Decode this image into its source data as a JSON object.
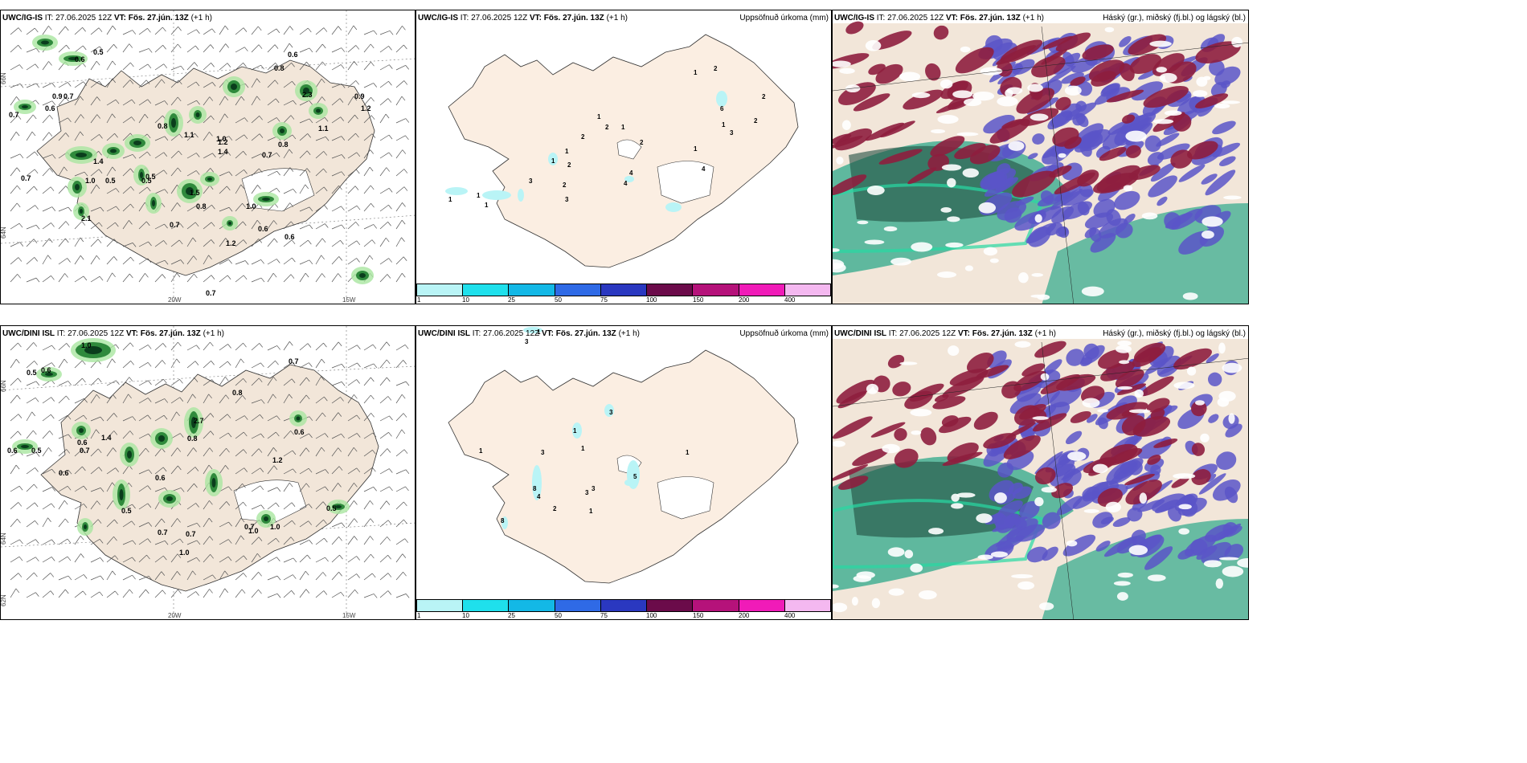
{
  "rows": [
    {
      "model": "UWC/IG-IS",
      "it_label": "IT:",
      "it_value": "27.06.2025 12Z",
      "vt_label": "VT:",
      "vt_value": "Fös. 27.jún. 13Z",
      "lead": "(+1 h)",
      "wind_labels": [
        "0.6",
        "0.5",
        "0.7",
        "0.9",
        "0.6",
        "0.7",
        "0.5",
        "1.0",
        "0.8",
        "1.1",
        "2.1",
        "0.8",
        "0.5",
        "0.7",
        "1.5",
        "0.8",
        "0.7",
        "0.6",
        "1.4",
        "1.2",
        "0.9",
        "2.3",
        "0.8",
        "1.1",
        "1.2",
        "0.5",
        "1.0",
        "0.6",
        "1.0",
        "1.2",
        "0.7",
        "1.4",
        "0.6",
        "0.7"
      ],
      "precip_labels": [
        "1",
        "2",
        "2",
        "6",
        "1",
        "3",
        "2",
        "2",
        "1",
        "4",
        "2",
        "2",
        "1",
        "1",
        "1",
        "2",
        "1",
        "4",
        "4",
        "2",
        "3",
        "3",
        "1",
        "1",
        "1"
      ]
    },
    {
      "model": "UWC/DINI ISL",
      "it_label": "IT:",
      "it_value": "27.06.2025 12Z",
      "vt_label": "VT:",
      "vt_value": "Fös. 27.jún. 13Z",
      "lead": "(+1 h)",
      "wind_labels": [
        "1.0",
        "0.5",
        "0.6",
        "0.6",
        "0.7",
        "0.8",
        "0.5",
        "0.6",
        "0.7",
        "2.7",
        "0.8",
        "1.4",
        "1.2",
        "0.6",
        "0.5",
        "0.7",
        "0.6",
        "1.0",
        "0.7",
        "1.0",
        "0.5",
        "0.7",
        "1.0",
        "0.6"
      ],
      "precip_labels": [
        "1",
        "3",
        "3",
        "1",
        "1",
        "3",
        "1",
        "5",
        "8",
        "4",
        "3",
        "3",
        "2",
        "1",
        "8",
        "1"
      ]
    }
  ],
  "precip_panel_title": "Uppsöfnuð úrkoma (mm)",
  "cloud_panel_title": "Háský (gr.), miðský (fj.bl.) og lágský (bl.)",
  "colorbar": {
    "ticks": [
      "1",
      "10",
      "25",
      "50",
      "75",
      "100",
      "150",
      "200",
      "400"
    ],
    "colors": [
      "#b9f4f6",
      "#1fe0ec",
      "#13b8e6",
      "#2f6ae6",
      "#2a38c0",
      "#6b0b4a",
      "#b5127a",
      "#f01bb8",
      "#f4b8f0"
    ]
  },
  "axis_labels": {
    "lat": [
      "66N",
      "64N",
      "62N"
    ],
    "lon": [
      "20W",
      "15W"
    ]
  },
  "colors": {
    "land": "#f2e6d9",
    "land_precip": "#fbeee2",
    "green_dark": "#0a3d1c",
    "green_light": "#a9e6a0",
    "cloud_high": "#8e1e3e",
    "cloud_mid": "#5b55c8",
    "cloud_low": "#2ea88a"
  }
}
